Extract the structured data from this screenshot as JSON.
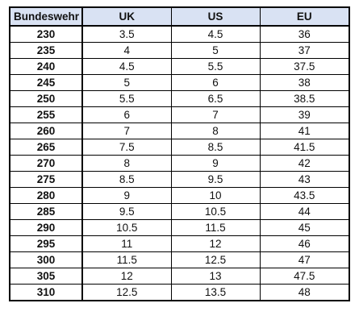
{
  "table": {
    "headers": [
      "Bundeswehr",
      "UK",
      "US",
      "EU"
    ],
    "rows": [
      [
        "230",
        "3.5",
        "4.5",
        "36"
      ],
      [
        "235",
        "4",
        "5",
        "37"
      ],
      [
        "240",
        "4.5",
        "5.5",
        "37.5"
      ],
      [
        "245",
        "5",
        "6",
        "38"
      ],
      [
        "250",
        "5.5",
        "6.5",
        "38.5"
      ],
      [
        "255",
        "6",
        "7",
        "39"
      ],
      [
        "260",
        "7",
        "8",
        "41"
      ],
      [
        "265",
        "7.5",
        "8.5",
        "41.5"
      ],
      [
        "270",
        "8",
        "9",
        "42"
      ],
      [
        "275",
        "8.5",
        "9.5",
        "43"
      ],
      [
        "280",
        "9",
        "10",
        "43.5"
      ],
      [
        "285",
        "9.5",
        "10.5",
        "44"
      ],
      [
        "290",
        "10.5",
        "11.5",
        "45"
      ],
      [
        "295",
        "11",
        "12",
        "46"
      ],
      [
        "300",
        "11.5",
        "12.5",
        "47"
      ],
      [
        "305",
        "12",
        "13",
        "47.5"
      ],
      [
        "310",
        "12.5",
        "13.5",
        "48"
      ]
    ]
  },
  "colors": {
    "header_background": "#d9e2f3",
    "border": "#000000",
    "text": "#111111"
  }
}
